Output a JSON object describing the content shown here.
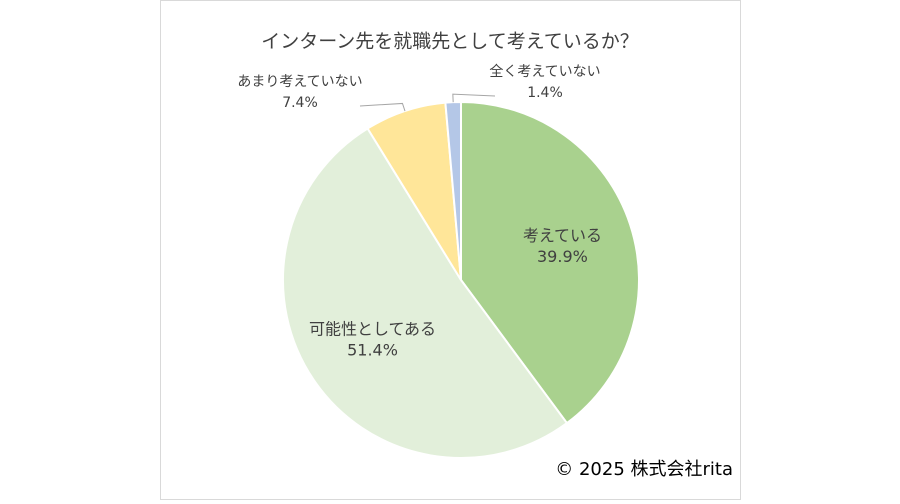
{
  "chart_data": {
    "type": "pie",
    "title": "インターン先を就職先として考えているか？",
    "categories": [
      "考えている",
      "可能性としてある",
      "あまり考えていない",
      "全く考えていない"
    ],
    "values": [
      39.9,
      51.4,
      7.4,
      1.4
    ],
    "value_labels": [
      "39.9%",
      "51.4%",
      "7.4%",
      "1.4%"
    ],
    "colors": [
      "#a9d18e",
      "#e2efda",
      "#ffe699",
      "#b4c7e7"
    ],
    "credit": "© 2025 株式会社rita"
  }
}
